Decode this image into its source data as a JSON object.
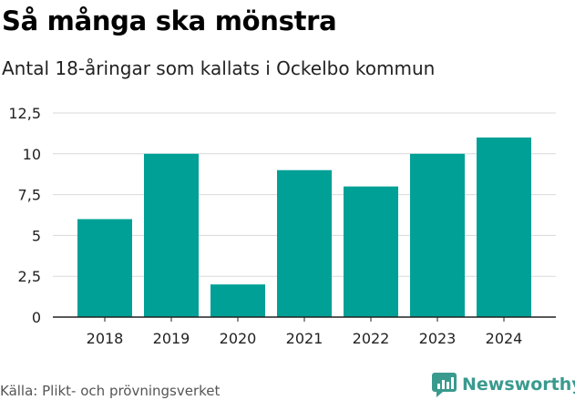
{
  "title": "Så många ska mönstra",
  "subtitle": "Antal 18-åringar som kallats i Ockelbo kommun",
  "source": "Källa: Plikt- och prövningsverket",
  "brand": "Newsworthy",
  "colors": {
    "bar": "#00a096",
    "grid": "#d9d9d9",
    "axis": "#222222",
    "brand": "#3a9a8e"
  },
  "chart_data": {
    "type": "bar",
    "title": "Så många ska mönstra",
    "subtitle": "Antal 18-åringar som kallats i Ockelbo kommun",
    "categories": [
      "2018",
      "2019",
      "2020",
      "2021",
      "2022",
      "2023",
      "2024"
    ],
    "values": [
      6,
      10,
      2,
      9,
      8,
      10,
      11
    ],
    "xlabel": "",
    "ylabel": "",
    "ylim": [
      0,
      12.5
    ],
    "yticks": [
      0,
      2.5,
      5,
      7.5,
      10,
      12.5
    ],
    "ytick_labels": [
      "0",
      "2,5",
      "5",
      "7,5",
      "10",
      "12,5"
    ],
    "grid": true,
    "legend": "none"
  }
}
